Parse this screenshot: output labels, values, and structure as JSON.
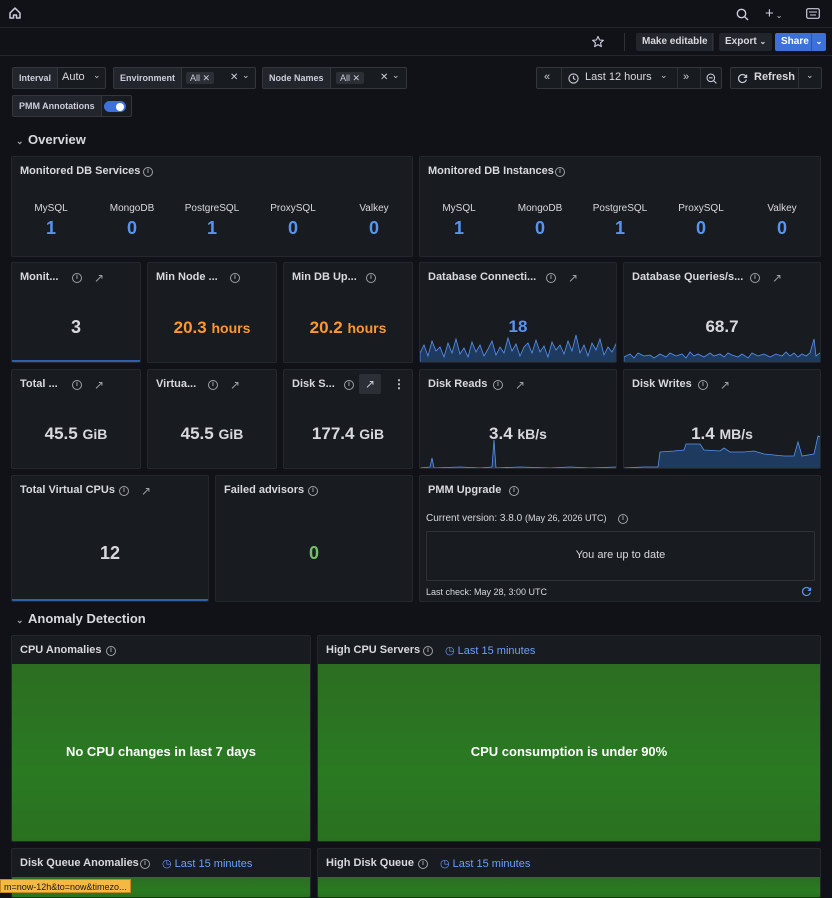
{
  "toolbar": {
    "make_editable": "Make editable",
    "export": "Export",
    "share": "Share"
  },
  "variables": {
    "interval": {
      "label": "Interval",
      "value": "Auto"
    },
    "environment": {
      "label": "Environment",
      "value": "All"
    },
    "node_names": {
      "label": "Node Names",
      "value": "All"
    },
    "annotations": {
      "label": "PMM Annotations",
      "enabled": true
    }
  },
  "time": {
    "range": "Last 12 hours",
    "refresh": "Refresh"
  },
  "sections": {
    "overview": "Overview",
    "anomaly": "Anomaly Detection"
  },
  "monitored_services": {
    "title": "Monitored DB Services",
    "items": [
      {
        "name": "MySQL",
        "value": "1"
      },
      {
        "name": "MongoDB",
        "value": "0"
      },
      {
        "name": "PostgreSQL",
        "value": "1"
      },
      {
        "name": "ProxySQL",
        "value": "0"
      },
      {
        "name": "Valkey",
        "value": "0"
      }
    ]
  },
  "monitored_instances": {
    "title": "Monitored DB Instances",
    "items": [
      {
        "name": "MySQL",
        "value": "1"
      },
      {
        "name": "MongoDB",
        "value": "0"
      },
      {
        "name": "PostgreSQL",
        "value": "1"
      },
      {
        "name": "ProxySQL",
        "value": "0"
      },
      {
        "name": "Valkey",
        "value": "0"
      }
    ]
  },
  "stats": {
    "monit": {
      "title": "Monit...",
      "value": "3"
    },
    "min_node_uptime": {
      "title": "Min Node ...",
      "value": "20.3",
      "unit": "hours"
    },
    "min_db_uptime": {
      "title": "Min DB Up...",
      "value": "20.2",
      "unit": "hours"
    },
    "db_connections": {
      "title": "Database Connecti...",
      "value": "18"
    },
    "db_queries": {
      "title": "Database Queries/s...",
      "value": "68.7"
    },
    "total_mem": {
      "title": "Total ...",
      "value": "45.5",
      "unit": "GiB"
    },
    "virtual_mem": {
      "title": "Virtua...",
      "value": "45.5",
      "unit": "GiB"
    },
    "disk_space": {
      "title": "Disk S...",
      "value": "177.4",
      "unit": "GiB"
    },
    "disk_reads": {
      "title": "Disk Reads",
      "value": "3.4",
      "unit": "kB/s"
    },
    "disk_writes": {
      "title": "Disk Writes",
      "value": "1.4",
      "unit": "MB/s"
    },
    "total_vcpus": {
      "title": "Total Virtual CPUs",
      "value": "12"
    },
    "failed_advisors": {
      "title": "Failed advisors",
      "value": "0"
    }
  },
  "pmm_upgrade": {
    "title": "PMM Upgrade",
    "current_label": "Current version: 3.8.0",
    "current_date": "(May 26, 2026 UTC)",
    "status": "You are up to date",
    "last_check": "Last check: May 28, 3:00 UTC"
  },
  "anomaly": {
    "cpu_anomalies": {
      "title": "CPU Anomalies",
      "message": "No CPU changes in last 7 days"
    },
    "high_cpu": {
      "title": "High CPU Servers",
      "range": "Last 15 minutes",
      "message": "CPU consumption is under 90%"
    },
    "disk_queue_anomalies": {
      "title": "Disk Queue Anomalies",
      "range": "Last 15 minutes"
    },
    "high_disk_queue": {
      "title": "High Disk Queue",
      "range": "Last 15 minutes"
    }
  },
  "status_url": "m=now-12h&to=now&timezo...",
  "colors": {
    "blue": "#5794f2",
    "orange": "#ff9830",
    "green": "#73bf69",
    "panel_bg": "#181b1f",
    "page_bg": "#111217"
  }
}
